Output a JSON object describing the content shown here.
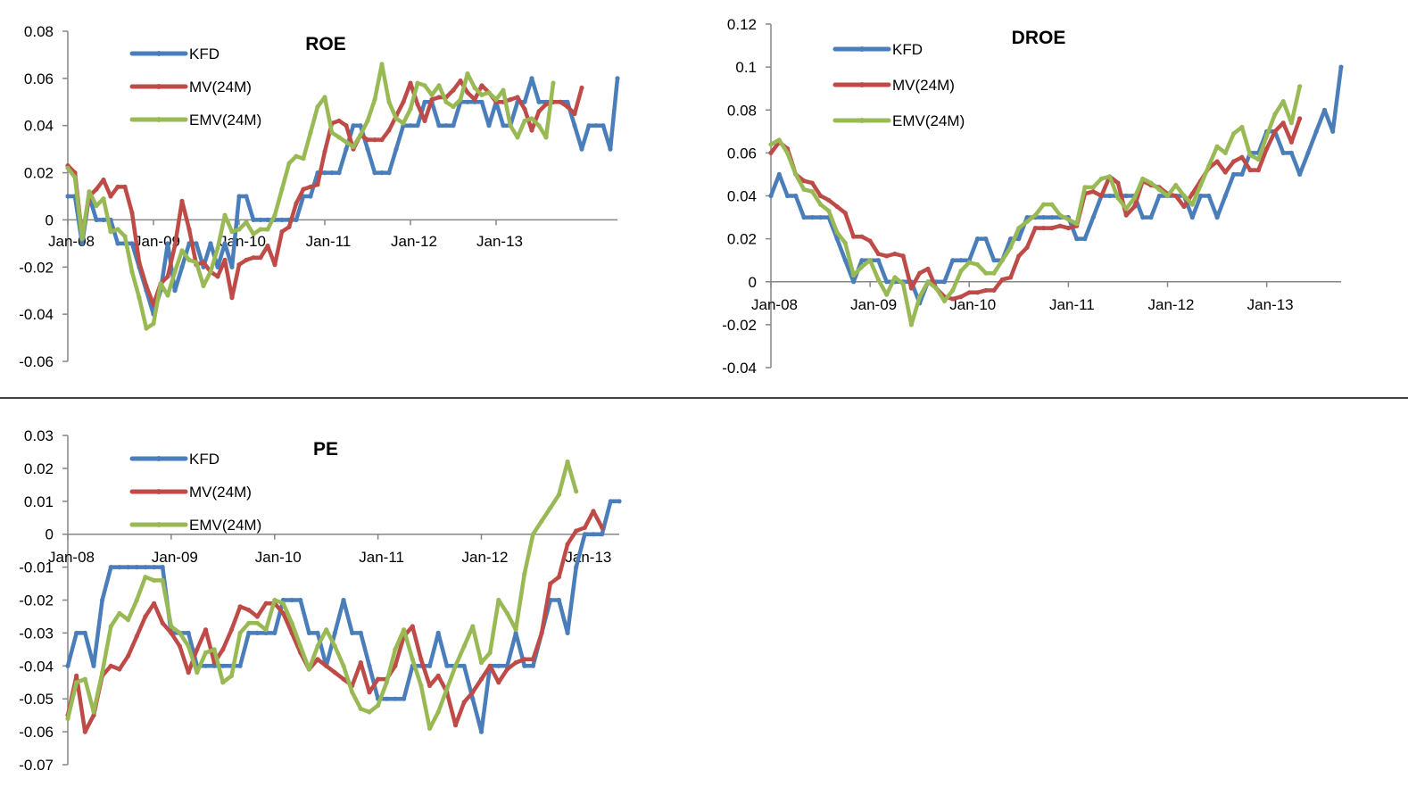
{
  "colors": {
    "KFD": "#4a7ebb",
    "MV": "#be4b48",
    "EMV": "#98b954"
  },
  "chart_data": [
    {
      "type": "line",
      "title": "ROE",
      "xlabel": "",
      "ylabel": "",
      "ylim": [
        -0.06,
        0.08
      ],
      "yticks": [
        "0.08",
        "0.06",
        "0.04",
        "0.02",
        "0",
        "-0.02",
        "-0.04",
        "-0.06"
      ],
      "xticks": [
        "Jan-08",
        "Jan-09",
        "Jan-10",
        "Jan-11",
        "Jan-12",
        "Jan-13"
      ],
      "legend": [
        "KFD",
        "MV(24M)",
        "EMV(24M)"
      ],
      "legend_position": "top-left",
      "series": [
        {
          "name": "KFD",
          "values": [
            0.01,
            0.01,
            -0.01,
            0.01,
            0,
            0,
            0,
            -0.01,
            -0.01,
            -0.01,
            -0.02,
            -0.03,
            -0.04,
            -0.03,
            -0.01,
            -0.03,
            -0.02,
            -0.01,
            -0.01,
            -0.02,
            -0.01,
            -0.02,
            -0.01,
            -0.02,
            0.01,
            0.01,
            0,
            0,
            0,
            0,
            0,
            0,
            0,
            0.01,
            0.01,
            0.02,
            0.02,
            0.02,
            0.02,
            0.03,
            0.04,
            0.04,
            0.03,
            0.02,
            0.02,
            0.02,
            0.03,
            0.04,
            0.04,
            0.04,
            0.05,
            0.05,
            0.04,
            0.04,
            0.04,
            0.05,
            0.05,
            0.05,
            0.05,
            0.04,
            0.05,
            0.04,
            0.04,
            0.05,
            0.05,
            0.06,
            0.05,
            0.05,
            0.05,
            0.05,
            0.05,
            0.04,
            0.03,
            0.04,
            0.04,
            0.04,
            0.03,
            0.06
          ]
        },
        {
          "name": "MV(24M)",
          "values": [
            0.023,
            0.02,
            -0.007,
            0.01,
            0.013,
            0.017,
            0.01,
            0.014,
            0.014,
            0.003,
            -0.018,
            -0.028,
            -0.036,
            -0.027,
            -0.024,
            -0.011,
            0.008,
            -0.004,
            -0.019,
            -0.018,
            -0.022,
            -0.024,
            -0.017,
            -0.033,
            -0.019,
            -0.017,
            -0.016,
            -0.016,
            -0.011,
            -0.019,
            -0.005,
            -0.003,
            0.007,
            0.013,
            0.014,
            0.015,
            0.029,
            0.041,
            0.042,
            0.04,
            0.03,
            0.036,
            0.034,
            0.034,
            0.034,
            0.038,
            0.044,
            0.05,
            0.058,
            0.049,
            0.042,
            0.051,
            0.052,
            0.052,
            0.055,
            0.059,
            0.054,
            0.051,
            0.057,
            0.054,
            0.05,
            0.05,
            0.051,
            0.052,
            0.047,
            0.038,
            0.046,
            0.049,
            0.05,
            0.05,
            0.048,
            0.045,
            0.056
          ]
        },
        {
          "name": "EMV(24M)",
          "values": [
            0.022,
            0.018,
            -0.008,
            0.012,
            0.006,
            0.009,
            -0.005,
            -0.004,
            -0.007,
            -0.022,
            -0.033,
            -0.046,
            -0.044,
            -0.027,
            -0.032,
            -0.022,
            -0.013,
            -0.017,
            -0.018,
            -0.028,
            -0.022,
            -0.012,
            0.002,
            -0.005,
            -0.004,
            -0.001,
            -0.006,
            -0.004,
            -0.004,
            0.002,
            0.013,
            0.024,
            0.027,
            0.026,
            0.037,
            0.048,
            0.052,
            0.037,
            0.035,
            0.033,
            0.031,
            0.036,
            0.042,
            0.051,
            0.066,
            0.05,
            0.043,
            0.041,
            0.047,
            0.058,
            0.057,
            0.053,
            0.057,
            0.05,
            0.048,
            0.051,
            0.062,
            0.056,
            0.053,
            0.054,
            0.051,
            0.055,
            0.04,
            0.035,
            0.042,
            0.043,
            0.04,
            0.035,
            0.058
          ]
        }
      ]
    },
    {
      "type": "line",
      "title": "DROE",
      "xlabel": "",
      "ylabel": "",
      "ylim": [
        -0.04,
        0.12
      ],
      "yticks": [
        "0.12",
        "0.1",
        "0.08",
        "0.06",
        "0.04",
        "0.02",
        "0",
        "-0.02",
        "-0.04"
      ],
      "xticks": [
        "Jan-08",
        "Jan-09",
        "Jan-10",
        "Jan-11",
        "Jan-12",
        "Jan-13"
      ],
      "legend": [
        "KFD",
        "MV(24M)",
        "EMV(24M)"
      ],
      "legend_position": "top-left",
      "series": [
        {
          "name": "KFD",
          "values": [
            0.04,
            0.05,
            0.04,
            0.04,
            0.03,
            0.03,
            0.03,
            0.03,
            0.02,
            0.01,
            0,
            0.01,
            0.01,
            0.01,
            0,
            0,
            0,
            0,
            -0.01,
            0,
            0,
            0,
            0.01,
            0.01,
            0.01,
            0.02,
            0.02,
            0.01,
            0.01,
            0.02,
            0.02,
            0.03,
            0.03,
            0.03,
            0.03,
            0.03,
            0.03,
            0.02,
            0.02,
            0.03,
            0.04,
            0.04,
            0.04,
            0.04,
            0.04,
            0.03,
            0.03,
            0.04,
            0.04,
            0.04,
            0.04,
            0.03,
            0.04,
            0.04,
            0.03,
            0.04,
            0.05,
            0.05,
            0.06,
            0.06,
            0.07,
            0.07,
            0.06,
            0.06,
            0.05,
            0.06,
            0.07,
            0.08,
            0.07,
            0.1
          ]
        },
        {
          "name": "MV(24M)",
          "values": [
            0.06,
            0.065,
            0.062,
            0.05,
            0.047,
            0.046,
            0.04,
            0.038,
            0.035,
            0.032,
            0.021,
            0.021,
            0.019,
            0.013,
            0.012,
            0.013,
            0.012,
            -0.003,
            0.004,
            0.006,
            -0.003,
            -0.007,
            -0.008,
            -0.007,
            -0.005,
            -0.005,
            -0.004,
            -0.004,
            0.001,
            0.002,
            0.012,
            0.016,
            0.025,
            0.025,
            0.025,
            0.026,
            0.025,
            0.026,
            0.041,
            0.042,
            0.04,
            0.049,
            0.046,
            0.031,
            0.035,
            0.047,
            0.045,
            0.044,
            0.041,
            0.04,
            0.035,
            0.041,
            0.047,
            0.053,
            0.056,
            0.051,
            0.056,
            0.058,
            0.052,
            0.052,
            0.062,
            0.07,
            0.074,
            0.065,
            0.076
          ]
        },
        {
          "name": "EMV(24M)",
          "values": [
            0.064,
            0.066,
            0.06,
            0.05,
            0.043,
            0.042,
            0.036,
            0.033,
            0.023,
            0.018,
            0.003,
            0.007,
            0.01,
            0.001,
            -0.006,
            0.002,
            -0.001,
            -0.02,
            -0.007,
            0,
            -0.003,
            -0.009,
            -0.004,
            0.005,
            0.009,
            0.008,
            0.004,
            0.004,
            0.01,
            0.016,
            0.025,
            0.028,
            0.031,
            0.036,
            0.036,
            0.031,
            0.029,
            0.027,
            0.044,
            0.044,
            0.048,
            0.049,
            0.039,
            0.034,
            0.039,
            0.048,
            0.046,
            0.043,
            0.04,
            0.045,
            0.04,
            0.036,
            0.045,
            0.054,
            0.063,
            0.06,
            0.069,
            0.072,
            0.059,
            0.057,
            0.068,
            0.078,
            0.084,
            0.074,
            0.091
          ]
        }
      ]
    },
    {
      "type": "line",
      "title": "PE",
      "xlabel": "",
      "ylabel": "",
      "ylim": [
        -0.07,
        0.03
      ],
      "yticks": [
        "0.03",
        "0.02",
        "0.01",
        "0",
        "-0.01",
        "-0.02",
        "-0.03",
        "-0.04",
        "-0.05",
        "-0.06",
        "-0.07"
      ],
      "xticks": [
        "Jan-08",
        "Jan-09",
        "Jan-10",
        "Jan-11",
        "Jan-12",
        "Jan-13"
      ],
      "legend": [
        "KFD",
        "MV(24M)",
        "EMV(24M)"
      ],
      "legend_position": "top-left",
      "series": [
        {
          "name": "KFD",
          "values": [
            -0.04,
            -0.03,
            -0.03,
            -0.04,
            -0.02,
            -0.01,
            -0.01,
            -0.01,
            -0.01,
            -0.01,
            -0.01,
            -0.01,
            -0.03,
            -0.03,
            -0.03,
            -0.04,
            -0.04,
            -0.04,
            -0.04,
            -0.04,
            -0.04,
            -0.03,
            -0.03,
            -0.03,
            -0.03,
            -0.02,
            -0.02,
            -0.02,
            -0.03,
            -0.03,
            -0.04,
            -0.03,
            -0.02,
            -0.03,
            -0.03,
            -0.04,
            -0.05,
            -0.05,
            -0.05,
            -0.05,
            -0.04,
            -0.04,
            -0.04,
            -0.03,
            -0.04,
            -0.04,
            -0.04,
            -0.05,
            -0.06,
            -0.04,
            -0.04,
            -0.04,
            -0.03,
            -0.04,
            -0.04,
            -0.03,
            -0.02,
            -0.02,
            -0.03,
            -0.01,
            0,
            0,
            0,
            0.01,
            0.01
          ]
        },
        {
          "name": "MV(24M)",
          "values": [
            -0.055,
            -0.043,
            -0.06,
            -0.055,
            -0.043,
            -0.04,
            -0.041,
            -0.037,
            -0.031,
            -0.025,
            -0.021,
            -0.027,
            -0.03,
            -0.034,
            -0.042,
            -0.035,
            -0.029,
            -0.039,
            -0.035,
            -0.029,
            -0.022,
            -0.023,
            -0.025,
            -0.021,
            -0.021,
            -0.024,
            -0.03,
            -0.036,
            -0.041,
            -0.038,
            -0.04,
            -0.042,
            -0.044,
            -0.046,
            -0.039,
            -0.048,
            -0.044,
            -0.044,
            -0.04,
            -0.031,
            -0.028,
            -0.038,
            -0.046,
            -0.043,
            -0.048,
            -0.058,
            -0.051,
            -0.048,
            -0.044,
            -0.04,
            -0.045,
            -0.041,
            -0.039,
            -0.038,
            -0.038,
            -0.03,
            -0.015,
            -0.013,
            -0.003,
            0.001,
            0.002,
            0.007,
            0.002
          ]
        },
        {
          "name": "EMV(24M)",
          "values": [
            -0.056,
            -0.045,
            -0.044,
            -0.054,
            -0.042,
            -0.028,
            -0.024,
            -0.026,
            -0.02,
            -0.013,
            -0.014,
            -0.014,
            -0.028,
            -0.03,
            -0.034,
            -0.042,
            -0.036,
            -0.035,
            -0.045,
            -0.043,
            -0.03,
            -0.027,
            -0.027,
            -0.029,
            -0.02,
            -0.021,
            -0.027,
            -0.034,
            -0.041,
            -0.034,
            -0.029,
            -0.034,
            -0.04,
            -0.048,
            -0.053,
            -0.054,
            -0.052,
            -0.045,
            -0.035,
            -0.029,
            -0.038,
            -0.046,
            -0.059,
            -0.054,
            -0.047,
            -0.04,
            -0.034,
            -0.028,
            -0.039,
            -0.036,
            -0.02,
            -0.024,
            -0.029,
            -0.012,
            0,
            0.004,
            0.008,
            0.012,
            0.022,
            0.013
          ]
        }
      ]
    }
  ]
}
